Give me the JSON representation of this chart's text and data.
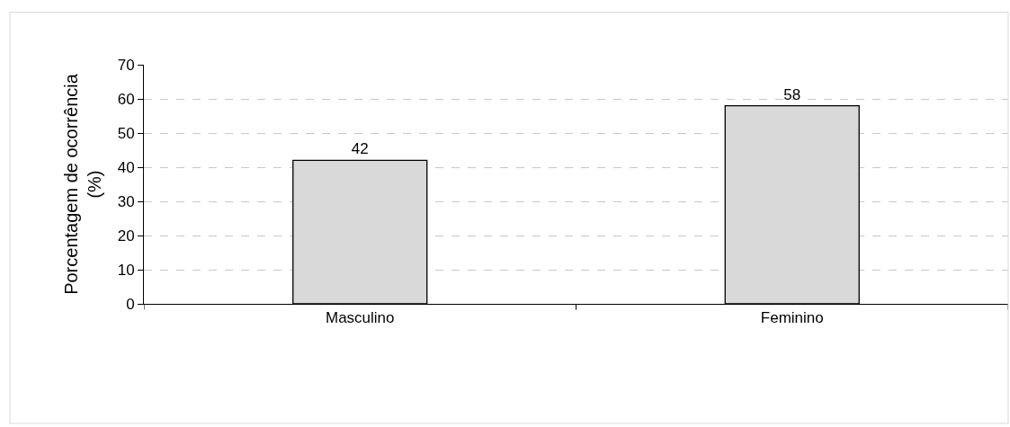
{
  "chart_data": {
    "type": "bar",
    "ylabel": "Porcentagem de ocorrência (%)",
    "categories": [
      "Masculino",
      "Feminino"
    ],
    "values": [
      42,
      58
    ],
    "color": "#d9d9d9",
    "ylim": [
      0,
      70
    ],
    "yticks": [
      0,
      10,
      20,
      30,
      40,
      50,
      60,
      70
    ],
    "grid": "y",
    "data_labels": true
  }
}
